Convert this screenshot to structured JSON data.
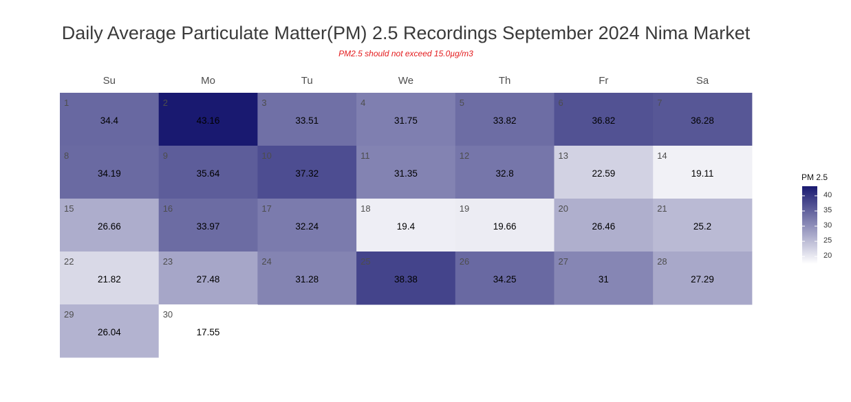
{
  "chart_data": {
    "type": "heatmap",
    "title": "Daily Average Particulate Matter(PM) 2.5 Recordings September 2024 Nima Market",
    "subtitle": "PM2.5 should not exceed 15.0µg/m3",
    "weekdays": [
      "Su",
      "Mo",
      "Tu",
      "We",
      "Th",
      "Fr",
      "Sa"
    ],
    "month_start_weekday": 0,
    "days": [
      1,
      2,
      3,
      4,
      5,
      6,
      7,
      8,
      9,
      10,
      11,
      12,
      13,
      14,
      15,
      16,
      17,
      18,
      19,
      20,
      21,
      22,
      23,
      24,
      25,
      26,
      27,
      28,
      29,
      30
    ],
    "values": [
      34.4,
      43.16,
      33.51,
      31.75,
      33.82,
      36.82,
      36.28,
      34.19,
      35.64,
      37.32,
      31.35,
      32.8,
      22.59,
      19.11,
      26.66,
      33.97,
      32.24,
      19.4,
      19.66,
      26.46,
      25.2,
      21.82,
      27.48,
      31.28,
      38.38,
      34.25,
      31,
      27.29,
      26.04,
      17.55
    ],
    "value_labels": [
      "34.4",
      "43.16",
      "33.51",
      "31.75",
      "33.82",
      "36.82",
      "36.28",
      "34.19",
      "35.64",
      "37.32",
      "31.35",
      "32.8",
      "22.59",
      "19.11",
      "26.66",
      "33.97",
      "32.24",
      "19.4",
      "19.66",
      "26.46",
      "25.2",
      "21.82",
      "27.48",
      "31.28",
      "38.38",
      "34.25",
      "31",
      "27.29",
      "26.04",
      "17.55"
    ],
    "legend": {
      "title": "PM 2.5",
      "placement": "right",
      "ticks": [
        20,
        25,
        30,
        35,
        40
      ],
      "range": [
        17.55,
        43.16
      ]
    },
    "colors": {
      "low": "#ffffff",
      "high": "#191970"
    }
  }
}
